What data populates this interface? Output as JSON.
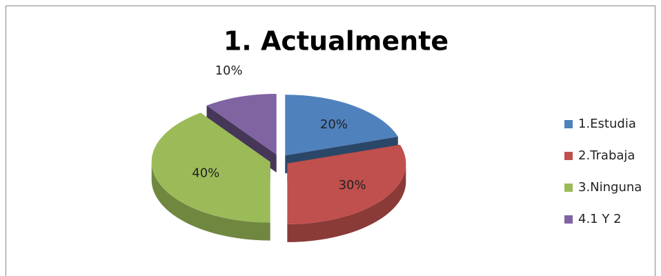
{
  "chart_data": {
    "type": "pie3d",
    "title": "1. Actualmente",
    "categories": [
      "1.Estudia",
      "2.Trabaja",
      "3.Ninguna",
      "4.1 Y 2"
    ],
    "values": [
      20,
      30,
      40,
      10
    ],
    "value_labels": [
      "20%",
      "30%",
      "40%",
      "10%"
    ],
    "colors": [
      "#4f81bd",
      "#c0504d",
      "#9bbb59",
      "#8064a2"
    ],
    "legend": "right"
  }
}
